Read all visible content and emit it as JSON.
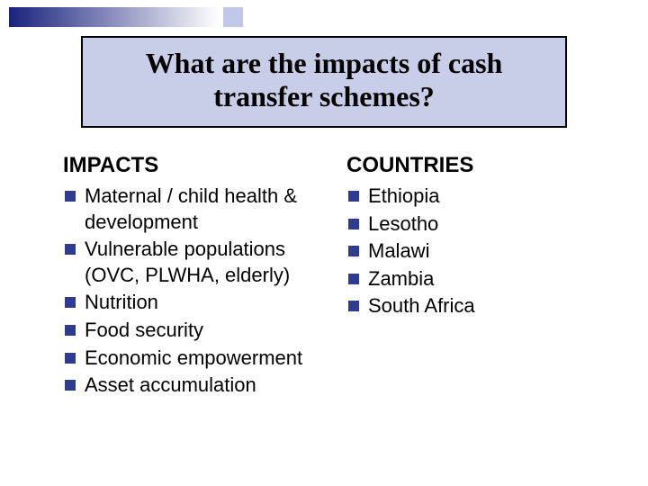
{
  "decor": {
    "gradient_start": "#1a237e",
    "gradient_end": "#ffffff",
    "square_color": "#c0c8e8"
  },
  "title_box": {
    "background": "#c8cde8",
    "border_color": "#000000",
    "text": "What are the impacts of cash transfer schemes?"
  },
  "bullet_color": "#2e3b8f",
  "left": {
    "heading": "IMPACTS",
    "items": [
      "Maternal / child health & development",
      "Vulnerable populations (OVC, PLWHA, elderly)",
      "Nutrition",
      "Food security",
      "Economic empowerment",
      "Asset accumulation"
    ]
  },
  "right": {
    "heading": "COUNTRIES",
    "items": [
      "Ethiopia",
      "Lesotho",
      "Malawi",
      "Zambia",
      "South Africa"
    ]
  }
}
